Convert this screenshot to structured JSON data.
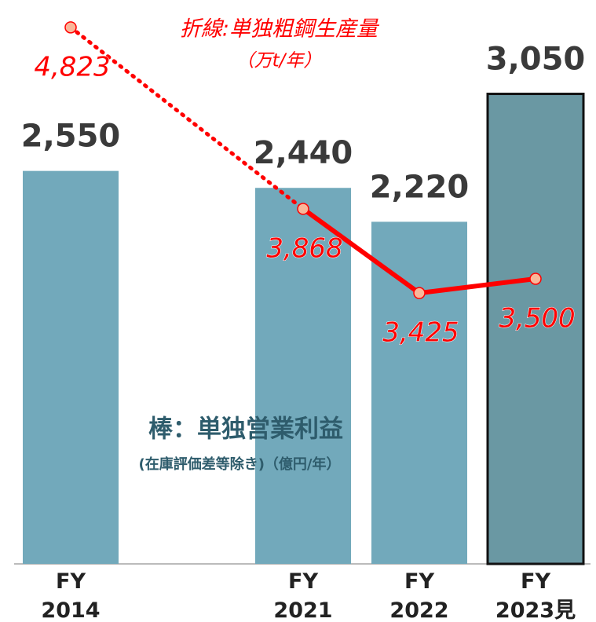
{
  "chart_data": {
    "type": "bar",
    "categories": [
      "FY\n2014",
      null,
      "FY\n2021",
      "FY\n2022",
      "FY\n2023見"
    ],
    "ylim": [
      0,
      3700
    ],
    "y2lim": [
      2000,
      5000
    ],
    "series": [
      {
        "name": "棒：単独営業利益",
        "type": "bar",
        "color": "#72a9bb",
        "colors": [
          "#72a9bb",
          null,
          "#72a9bb",
          "#72a9bb",
          "#6a98a3"
        ],
        "values": [
          2550,
          null,
          2440,
          2220,
          3050
        ],
        "value_labels": [
          "2,550",
          null,
          "2,440",
          "2,220",
          "3,050"
        ]
      },
      {
        "name": "折線:単独粗鋼生産量",
        "type": "line",
        "axis": "y2",
        "color": "#ff0000",
        "marker_color": "#f9b79a",
        "values": [
          4823,
          null,
          3868,
          3425,
          3500
        ],
        "value_labels": [
          "4,823",
          null,
          "3,868",
          "3,425",
          "3,500"
        ]
      }
    ],
    "annotations": [
      "折線:単独粗鋼生産量",
      "（万t/年）",
      "棒：単独営業利益",
      "(在庫評価差等除き)（億円/年）"
    ]
  }
}
